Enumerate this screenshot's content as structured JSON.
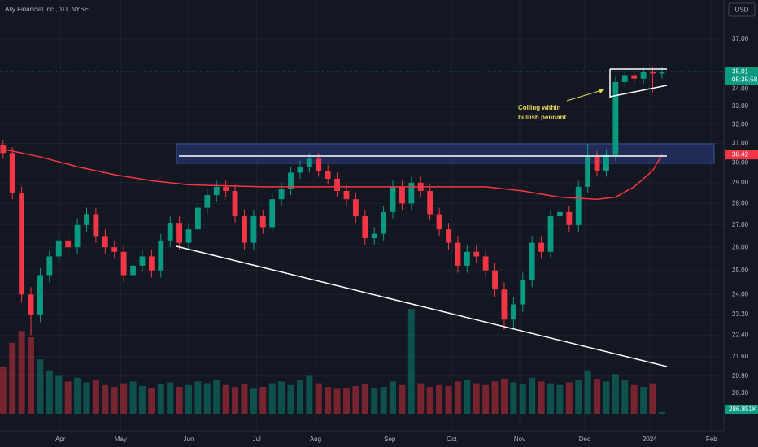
{
  "chart_data": {
    "type": "candlestick",
    "title": "Ally Financial Inc., 1D, NYSE",
    "currency": "USD",
    "countdown": "05:35:58",
    "annotation": [
      "Coiling within",
      "bullish pennant"
    ],
    "log_scale": true,
    "grid": true,
    "up_color": "#089981",
    "down_color": "#f23645",
    "x": [
      0,
      3,
      6,
      9,
      12,
      15,
      18,
      21,
      24,
      27,
      30,
      33,
      36,
      39,
      42,
      45,
      48,
      51,
      54,
      57,
      60,
      63,
      66,
      69,
      72,
      75,
      78,
      81,
      84,
      87,
      90,
      93,
      96,
      99,
      102,
      105,
      108,
      111,
      114,
      117,
      120,
      123,
      126,
      129,
      132,
      135,
      138,
      141,
      144,
      147,
      150,
      153,
      156,
      159,
      162,
      165,
      168,
      171,
      174,
      177,
      180,
      183,
      186,
      189,
      192,
      195,
      198,
      201,
      204,
      207,
      210,
      213
    ],
    "open": [
      30.9,
      30.5,
      28.5,
      24.0,
      23.2,
      24.8,
      25.6,
      26.3,
      26.0,
      27.0,
      27.5,
      26.5,
      26.0,
      25.8,
      24.8,
      25.2,
      25.6,
      25.0,
      26.3,
      27.1,
      26.2,
      26.8,
      27.8,
      28.4,
      28.8,
      28.6,
      27.4,
      26.2,
      27.4,
      26.9,
      28.2,
      28.7,
      29.5,
      29.8,
      30.2,
      29.6,
      29.2,
      28.6,
      28.2,
      27.4,
      26.4,
      26.6,
      27.6,
      28.8,
      28.0,
      29.0,
      28.6,
      27.5,
      26.8,
      26.2,
      25.2,
      25.8,
      25.6,
      25.0,
      24.2,
      23.0,
      23.6,
      24.6,
      26.2,
      25.8,
      27.4,
      27.6,
      27.0,
      28.8,
      30.3,
      29.6,
      30.4,
      34.4,
      34.8,
      34.6,
      35.0,
      34.9
    ],
    "high": [
      31.2,
      30.8,
      28.8,
      24.3,
      25.1,
      25.9,
      26.6,
      26.6,
      27.3,
      27.8,
      27.8,
      26.8,
      26.3,
      26.1,
      25.5,
      25.9,
      25.9,
      26.6,
      27.4,
      27.4,
      27.1,
      28.1,
      28.7,
      29.1,
      29.1,
      28.9,
      27.7,
      27.7,
      27.7,
      28.5,
      29.0,
      29.8,
      30.1,
      30.5,
      30.5,
      29.9,
      29.5,
      28.9,
      28.5,
      27.7,
      26.9,
      27.9,
      29.1,
      29.1,
      29.3,
      29.3,
      28.9,
      27.8,
      27.1,
      26.5,
      26.1,
      26.1,
      25.9,
      25.3,
      24.5,
      23.9,
      24.9,
      26.5,
      26.5,
      27.7,
      27.9,
      27.9,
      29.1,
      31.0,
      30.6,
      30.7,
      34.7,
      35.1,
      35.1,
      35.3,
      35.3,
      35.3
    ],
    "low": [
      30.2,
      28.2,
      23.7,
      22.4,
      22.9,
      24.5,
      25.3,
      25.7,
      25.7,
      26.7,
      26.2,
      25.7,
      25.5,
      24.5,
      24.5,
      24.9,
      24.7,
      24.7,
      26.0,
      25.9,
      25.9,
      26.5,
      27.5,
      28.1,
      28.3,
      27.1,
      25.9,
      25.9,
      26.6,
      26.6,
      27.9,
      28.4,
      29.2,
      29.5,
      29.3,
      28.9,
      28.3,
      27.9,
      27.1,
      26.1,
      26.1,
      26.3,
      27.3,
      27.7,
      27.7,
      28.3,
      27.2,
      26.5,
      25.9,
      24.9,
      24.9,
      25.3,
      24.7,
      23.9,
      22.6,
      22.7,
      23.3,
      24.3,
      25.5,
      25.5,
      27.1,
      26.7,
      26.7,
      28.5,
      29.3,
      29.3,
      30.1,
      34.1,
      34.3,
      34.3,
      33.8,
      34.6
    ],
    "close": [
      30.5,
      28.5,
      24.0,
      23.2,
      24.8,
      25.6,
      26.3,
      26.0,
      27.0,
      27.5,
      26.5,
      26.0,
      25.8,
      24.8,
      25.2,
      25.6,
      25.0,
      26.3,
      27.1,
      26.2,
      26.8,
      27.8,
      28.4,
      28.8,
      28.6,
      27.4,
      26.2,
      27.4,
      26.9,
      28.2,
      28.7,
      29.5,
      29.8,
      30.2,
      29.6,
      29.2,
      28.6,
      28.2,
      27.4,
      26.4,
      26.6,
      27.6,
      28.8,
      28.0,
      29.0,
      28.6,
      27.5,
      26.8,
      26.2,
      25.2,
      25.8,
      25.6,
      25.0,
      24.2,
      23.0,
      23.6,
      24.6,
      26.2,
      25.8,
      27.4,
      27.6,
      27.0,
      28.8,
      30.3,
      29.6,
      30.4,
      34.4,
      34.8,
      34.6,
      35.0,
      34.9,
      35.01
    ],
    "volume": {
      "values": [
        5200,
        7800,
        9100,
        8400,
        6000,
        4800,
        4200,
        3600,
        4000,
        3500,
        3800,
        3200,
        3000,
        3400,
        3600,
        3100,
        2900,
        3300,
        3500,
        3000,
        3200,
        3600,
        3400,
        3800,
        3200,
        3000,
        3300,
        2800,
        3000,
        3400,
        3600,
        3200,
        3800,
        4200,
        3400,
        3000,
        2800,
        2900,
        3100,
        3300,
        2900,
        3000,
        3600,
        3200,
        11500,
        3400,
        3000,
        3200,
        3100,
        3600,
        3800,
        3400,
        3200,
        3600,
        3900,
        3500,
        3300,
        4000,
        3600,
        3400,
        3200,
        3500,
        3800,
        4800,
        3900,
        3600,
        4400,
        3800,
        3200,
        3000,
        3400,
        286.851
      ],
      "value_labels": [
        null,
        null,
        null,
        null,
        null,
        null,
        null,
        null,
        null,
        null,
        null,
        null,
        null,
        null,
        null,
        null,
        null,
        null,
        null,
        null,
        null,
        null,
        null,
        null,
        null,
        null,
        null,
        null,
        null,
        null,
        null,
        null,
        null,
        null,
        null,
        null,
        null,
        null,
        null,
        null,
        null,
        null,
        null,
        null,
        null,
        null,
        null,
        null,
        null,
        null,
        null,
        null,
        null,
        null,
        null,
        null,
        null,
        null,
        null,
        null,
        null,
        null,
        null,
        null,
        null,
        null,
        null,
        null,
        null,
        null,
        null,
        "286.851K"
      ]
    },
    "moving_average": {
      "color": "#f23645",
      "x": [
        0,
        12,
        24,
        36,
        48,
        60,
        84,
        108,
        132,
        156,
        168,
        180,
        192,
        198,
        204,
        210,
        213
      ],
      "values": [
        30.7,
        30.3,
        29.8,
        29.4,
        29.1,
        28.9,
        28.8,
        28.8,
        28.8,
        28.8,
        28.6,
        28.3,
        28.2,
        28.3,
        28.8,
        29.6,
        30.42
      ]
    },
    "xlim": [
      -1,
      233
    ],
    "xticks": [
      {
        "value": 18.5,
        "label": "Apr"
      },
      {
        "value": 38,
        "label": "May"
      },
      {
        "value": 60,
        "label": "Jun"
      },
      {
        "value": 82,
        "label": "Jul"
      },
      {
        "value": 101,
        "label": "Aug"
      },
      {
        "value": 125,
        "label": "Sep"
      },
      {
        "value": 145,
        "label": "Oct"
      },
      {
        "value": 167,
        "label": "Nov"
      },
      {
        "value": 188,
        "label": "Dec"
      },
      {
        "value": 209,
        "label": "2024"
      },
      {
        "value": 229,
        "label": "Feb"
      }
    ],
    "ylim": [
      19.05,
      39.53
    ],
    "yticks": [
      {
        "value": 37,
        "label": "37.00"
      },
      {
        "value": 34,
        "label": "34.00"
      },
      {
        "value": 33,
        "label": "33.00"
      },
      {
        "value": 32,
        "label": "32.00"
      },
      {
        "value": 31,
        "label": "31.00"
      },
      {
        "value": 30,
        "label": "30.00"
      },
      {
        "value": 29,
        "label": "29.00"
      },
      {
        "value": 28,
        "label": "28.00"
      },
      {
        "value": 27,
        "label": "27.00"
      },
      {
        "value": 26,
        "label": "26.00"
      },
      {
        "value": 25,
        "label": "25.00"
      },
      {
        "value": 24,
        "label": "24.00"
      },
      {
        "value": 23.2,
        "label": "23.20"
      },
      {
        "value": 22.4,
        "label": "22.40"
      },
      {
        "value": 21.6,
        "label": "21.60"
      },
      {
        "value": 20.9,
        "label": "20.90"
      },
      {
        "value": 20.3,
        "label": "20.30"
      }
    ]
  }
}
